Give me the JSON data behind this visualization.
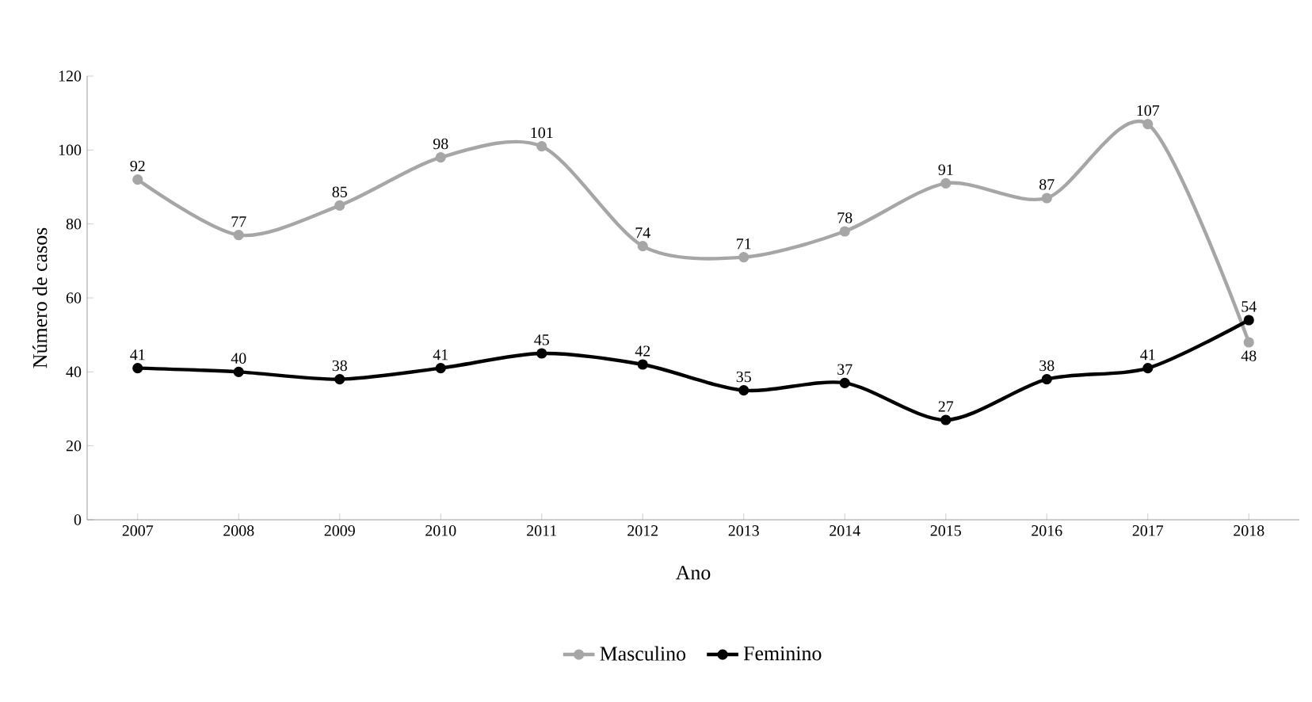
{
  "chart_data": {
    "type": "line",
    "xlabel": "Ano",
    "ylabel": "Número de casos",
    "categories": [
      "2007",
      "2008",
      "2009",
      "2010",
      "2011",
      "2012",
      "2013",
      "2014",
      "2015",
      "2016",
      "2017",
      "2018"
    ],
    "series": [
      {
        "name": "Masculino",
        "color": "#a6a6a6",
        "values": [
          92,
          77,
          85,
          98,
          101,
          74,
          71,
          78,
          91,
          87,
          107,
          48
        ]
      },
      {
        "name": "Feminino",
        "color": "#000000",
        "values": [
          41,
          40,
          38,
          41,
          45,
          42,
          35,
          37,
          27,
          38,
          41,
          54
        ]
      }
    ],
    "ylim": [
      0,
      120
    ],
    "yticks": [
      0,
      20,
      40,
      60,
      80,
      100,
      120
    ],
    "grid": false,
    "legend": "bottom",
    "marker": "circle",
    "line_style": "solid",
    "data_labels": true
  }
}
